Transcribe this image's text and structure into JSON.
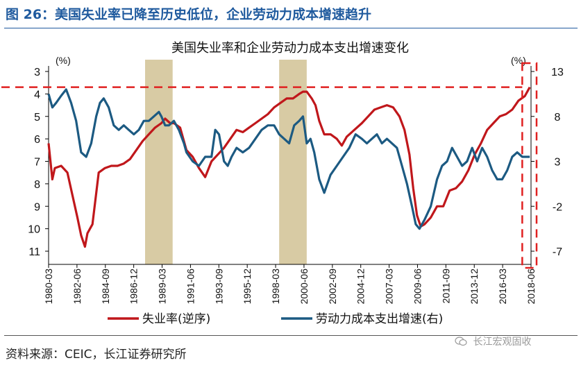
{
  "figure_title": "图 26：美国失业率已降至历史低位，企业劳动力成本增速趋升",
  "source": "资料来源：CEIC，长江证券研究所",
  "watermark": "长江宏观固收",
  "colors": {
    "title_blue": "#1f5a9e",
    "unemployment": "#c0171b",
    "labor_cost": "#1c5a82",
    "shade": "#d8cba4",
    "dashed": "#e02020"
  },
  "chart_data": {
    "type": "line",
    "title": "美国失业率和企业劳动力成本支出增速变化",
    "left_unit": "(%)",
    "right_unit": "(%)",
    "left_axis": {
      "ticks": [
        3,
        4,
        5,
        6,
        7,
        8,
        9,
        10,
        11
      ],
      "ylim": [
        3,
        11
      ],
      "inverted": true
    },
    "right_axis": {
      "ticks": [
        13,
        8,
        3,
        -2,
        -7
      ],
      "ylim": [
        -7,
        13
      ]
    },
    "x_range": [
      1980.0,
      2018.5
    ],
    "x_tick_labels": [
      "1980-03",
      "1982-06",
      "1984-09",
      "1986-12",
      "1989-03",
      "1991-06",
      "1993-09",
      "1995-12",
      "1998-03",
      "2000-06",
      "2002-09",
      "2004-12",
      "2007-03",
      "2009-06",
      "2011-09",
      "2013-12",
      "2016-03",
      "2018-06"
    ],
    "recession_shading": [
      [
        1987.7,
        1989.9
      ],
      [
        1998.4,
        2000.6
      ]
    ],
    "reference_line_left": 3.7,
    "highlight_box_x": [
      2017.8,
      2018.5
    ],
    "legend": [
      "失业率(逆序)",
      "劳动力成本支出增速(右)"
    ],
    "series": [
      {
        "name": "失业率(逆序)",
        "axis": "left",
        "x": [
          1980.0,
          1980.3,
          1980.5,
          1981.0,
          1981.5,
          1981.9,
          1982.3,
          1982.6,
          1982.9,
          1983.1,
          1983.5,
          1984.0,
          1984.5,
          1985.0,
          1985.5,
          1986.0,
          1986.5,
          1987.0,
          1987.5,
          1988.0,
          1988.5,
          1989.0,
          1989.3,
          1989.7,
          1990.0,
          1990.5,
          1991.0,
          1991.5,
          1992.0,
          1992.5,
          1993.0,
          1993.5,
          1994.0,
          1994.5,
          1995.0,
          1995.5,
          1996.0,
          1996.5,
          1997.0,
          1997.5,
          1998.0,
          1998.5,
          1999.0,
          1999.5,
          2000.0,
          2000.3,
          2000.6,
          2001.0,
          2001.3,
          2001.6,
          2002.0,
          2002.5,
          2003.0,
          2003.4,
          2003.8,
          2004.2,
          2004.6,
          2005.0,
          2005.5,
          2006.0,
          2006.5,
          2007.0,
          2007.5,
          2008.0,
          2008.4,
          2008.8,
          2009.1,
          2009.4,
          2009.7,
          2010.0,
          2010.5,
          2011.0,
          2011.5,
          2012.0,
          2012.5,
          2013.0,
          2013.5,
          2014.0,
          2014.5,
          2015.0,
          2015.5,
          2016.0,
          2016.5,
          2017.0,
          2017.5,
          2018.0,
          2018.4
        ],
        "values": [
          6.2,
          7.8,
          7.3,
          7.2,
          7.5,
          8.5,
          9.5,
          10.3,
          10.8,
          10.2,
          9.8,
          7.5,
          7.3,
          7.2,
          7.2,
          7.1,
          6.9,
          6.5,
          6.1,
          5.8,
          5.5,
          5.3,
          5.1,
          5.3,
          5.3,
          5.5,
          6.5,
          6.8,
          7.3,
          7.7,
          7.0,
          6.7,
          6.4,
          6.0,
          5.6,
          5.7,
          5.5,
          5.3,
          5.1,
          4.9,
          4.6,
          4.4,
          4.2,
          4.2,
          4.0,
          3.9,
          3.9,
          4.2,
          4.5,
          5.2,
          5.8,
          5.8,
          6.0,
          6.3,
          5.9,
          5.7,
          5.5,
          5.3,
          5.0,
          4.7,
          4.6,
          4.5,
          4.6,
          5.0,
          5.6,
          6.7,
          8.2,
          9.4,
          9.9,
          9.8,
          9.5,
          9.0,
          9.0,
          8.3,
          8.2,
          7.9,
          7.4,
          6.7,
          6.2,
          5.6,
          5.3,
          5.0,
          4.9,
          4.7,
          4.3,
          4.1,
          3.7
        ]
      },
      {
        "name": "劳动力成本支出增速(右)",
        "axis": "right",
        "x": [
          1980.0,
          1980.3,
          1980.6,
          1981.0,
          1981.4,
          1981.8,
          1982.2,
          1982.6,
          1983.0,
          1983.4,
          1983.8,
          1984.1,
          1984.4,
          1984.8,
          1985.2,
          1985.6,
          1986.0,
          1986.4,
          1986.8,
          1987.2,
          1987.6,
          1988.0,
          1988.4,
          1988.8,
          1989.0,
          1989.3,
          1989.6,
          1990.0,
          1990.4,
          1990.8,
          1991.0,
          1991.5,
          1992.0,
          1992.5,
          1993.0,
          1993.3,
          1993.6,
          1994.0,
          1994.3,
          1994.6,
          1995.0,
          1995.5,
          1996.0,
          1996.5,
          1997.0,
          1997.5,
          1998.0,
          1998.4,
          1998.8,
          1999.2,
          1999.6,
          2000.0,
          2000.3,
          2000.6,
          2000.9,
          2001.2,
          2001.6,
          2002.0,
          2002.5,
          2003.0,
          2003.5,
          2004.0,
          2004.5,
          2005.0,
          2005.4,
          2005.8,
          2006.2,
          2006.6,
          2007.0,
          2007.4,
          2007.8,
          2008.2,
          2008.6,
          2009.0,
          2009.3,
          2009.6,
          2010.0,
          2010.5,
          2011.0,
          2011.4,
          2011.8,
          2012.2,
          2012.6,
          2013.0,
          2013.4,
          2013.8,
          2014.2,
          2014.6,
          2015.0,
          2015.4,
          2015.8,
          2016.2,
          2016.6,
          2017.0,
          2017.4,
          2017.8,
          2018.2,
          2018.4
        ],
        "values": [
          10.5,
          9.0,
          9.5,
          10.3,
          11.0,
          9.5,
          7.5,
          4.0,
          3.5,
          5.0,
          8.0,
          9.5,
          10.0,
          9.0,
          7.0,
          6.5,
          7.0,
          6.5,
          6.0,
          6.5,
          7.5,
          7.5,
          8.0,
          8.5,
          8.0,
          7.0,
          7.0,
          7.5,
          6.5,
          5.0,
          4.0,
          3.0,
          2.5,
          3.5,
          3.5,
          6.5,
          6.0,
          3.0,
          2.5,
          3.5,
          4.5,
          4.0,
          4.5,
          5.5,
          6.5,
          7.0,
          7.0,
          6.0,
          5.5,
          5.0,
          7.0,
          7.5,
          8.0,
          5.0,
          5.5,
          4.0,
          1.0,
          -0.5,
          1.5,
          2.5,
          3.5,
          4.5,
          6.0,
          5.5,
          5.0,
          5.5,
          6.0,
          5.0,
          5.5,
          5.0,
          4.5,
          2.5,
          0.5,
          -2.0,
          -4.0,
          -4.5,
          -3.5,
          -2.0,
          1.0,
          2.5,
          3.0,
          4.5,
          3.5,
          2.5,
          3.0,
          4.5,
          3.0,
          4.5,
          3.5,
          2.0,
          1.0,
          1.0,
          2.0,
          3.5,
          4.0,
          3.5,
          3.5,
          3.5
        ]
      }
    ]
  }
}
